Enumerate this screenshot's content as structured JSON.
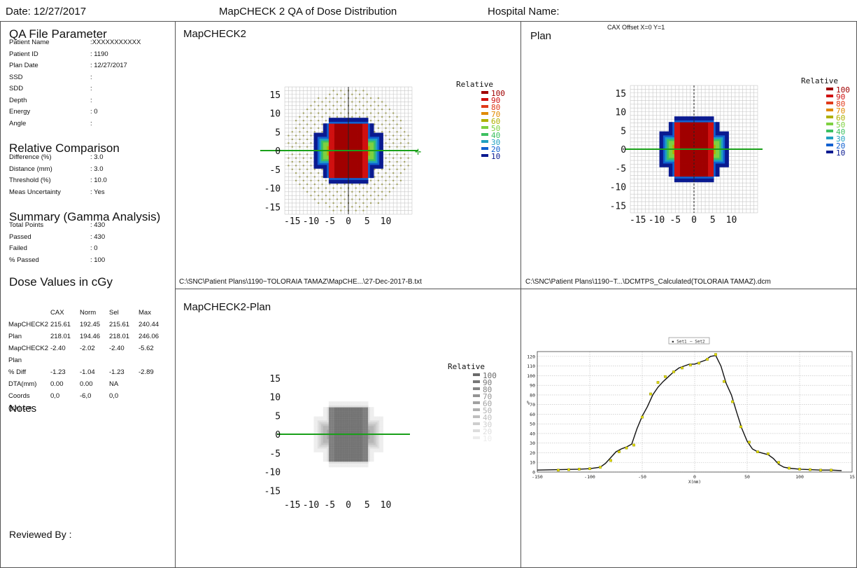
{
  "header": {
    "date": "Date: 12/27/2017",
    "title": "MapCHECK 2 QA of Dose Distribution",
    "hospital": "Hospital Name:"
  },
  "qa_file": {
    "title": "QA File Parameter",
    "rows": [
      {
        "label": "Patient Name",
        "value": ":XXXXXXXXXXX"
      },
      {
        "label": "Patient ID",
        "value": ": 1190"
      },
      {
        "label": "Plan Date",
        "value": ": 12/27/2017"
      },
      {
        "label": "SSD",
        "value": ":"
      },
      {
        "label": "SDD",
        "value": ":"
      },
      {
        "label": "Depth",
        "value": ":"
      },
      {
        "label": "Energy",
        "value": ": 0"
      },
      {
        "label": "Angle",
        "value": ":"
      }
    ]
  },
  "relative": {
    "title": "Relative Comparison",
    "rows": [
      {
        "label": "Difference (%)",
        "value": ": 3.0"
      },
      {
        "label": "Distance (mm)",
        "value": ": 3.0"
      },
      {
        "label": "Threshold (%)",
        "value": ": 10.0"
      },
      {
        "label": "Meas Uncertainty",
        "value": ": Yes"
      }
    ]
  },
  "summary": {
    "title": "Summary (Gamma Analysis)",
    "rows": [
      {
        "label": "Total Points",
        "value": ": 430"
      },
      {
        "label": "Passed",
        "value": ": 430"
      },
      {
        "label": "Failed",
        "value": ": 0"
      },
      {
        "label": "% Passed",
        "value": ": 100"
      }
    ]
  },
  "dose_values": {
    "title": "Dose Values in cGy",
    "headers": [
      "",
      "CAX",
      "Norm",
      "Sel",
      "Max"
    ],
    "rows": [
      [
        "MapCHECK2",
        "215.61",
        "192.45",
        "215.61",
        "240.44"
      ],
      [
        "Plan",
        "218.01",
        "194.46",
        "218.01",
        "246.06"
      ],
      [
        "MapCHECK2",
        "-2.40",
        "-2.02",
        "-2.40",
        "-5.62"
      ],
      [
        " Plan",
        "",
        "",
        "",
        ""
      ],
      [
        "% Diff",
        "-1.23",
        "-1.04",
        "-1.23",
        "-2.89"
      ],
      [
        "DTA(mm)",
        "0.00",
        "0.00",
        "NA",
        ""
      ],
      [
        "Coords",
        "0,0",
        "-6,0",
        "0,0",
        ""
      ],
      [
        "(y,x) cm",
        "",
        "",
        "",
        ""
      ]
    ]
  },
  "notes_label": "Notes",
  "reviewed_label": "Reviewed By :",
  "panels": {
    "mapcheck": {
      "title": "MapCHECK2",
      "footer": "C:\\SNC\\Patient Plans\\1190~TOLORAIA TAMAZ\\MapCHE...\\27-Dec-2017-B.txt"
    },
    "plan": {
      "title": "Plan",
      "offset": "CAX Offset X=0 Y=1",
      "footer": "C:\\SNC\\Patient Plans\\1190~T...\\DCMTPS_Calculated(TOLORAIA TAMAZ).dcm"
    },
    "diff": {
      "title": "MapCHECK2-Plan"
    }
  },
  "dose_map": {
    "y_ticks": [
      "15",
      "10",
      "5",
      "0",
      "-5",
      "-10",
      "-15"
    ],
    "x_ticks": [
      "-15",
      "-10",
      "-5",
      "0",
      "5",
      "10"
    ],
    "legend_title": "Relative",
    "legend_levels": [
      "100",
      "90",
      "80",
      "70",
      "60",
      "50",
      "40",
      "30",
      "20",
      "10"
    ],
    "legend_colors": [
      "#a00000",
      "#d01010",
      "#e03a1a",
      "#e08a00",
      "#b0b000",
      "#7ed040",
      "#3cc060",
      "#20a0c0",
      "#1060d0",
      "#0a1a90"
    ],
    "gray_colors": [
      "#6a6a6a",
      "#777777",
      "#858585",
      "#939393",
      "#a1a1a1",
      "#b0b0b0",
      "#bfbfbf",
      "#cecece",
      "#dddddd",
      "#ececec"
    ]
  },
  "chart_data": {
    "type": "line",
    "legend": [
      "Set1",
      "Set2"
    ],
    "xlabel": "X(mm)",
    "ylabel": "%",
    "xlim": [
      -150,
      150
    ],
    "ylim": [
      0,
      125
    ],
    "x_ticks": [
      "-150",
      "-100",
      "-50",
      "0",
      "50",
      "100",
      "15"
    ],
    "y_ticks": [
      "120",
      "110",
      "100",
      "90",
      "80",
      "70",
      "60",
      "50",
      "40",
      "30",
      "20",
      "10",
      "0"
    ],
    "series": [
      {
        "name": "Set1",
        "x": [
          -150,
          -130,
          -110,
          -100,
          -90,
          -85,
          -80,
          -75,
          -70,
          -65,
          -60,
          -55,
          -50,
          -45,
          -40,
          -35,
          -30,
          -25,
          -20,
          -15,
          -10,
          -5,
          0,
          5,
          10,
          15,
          20,
          25,
          30,
          35,
          40,
          45,
          50,
          55,
          60,
          65,
          70,
          75,
          80,
          85,
          90,
          100,
          110,
          120,
          130,
          140
        ],
        "y": [
          2,
          2.5,
          3,
          3.5,
          5,
          9,
          15,
          21,
          24,
          26,
          29,
          45,
          58,
          68,
          80,
          88,
          94,
          99,
          104,
          108,
          110,
          112,
          112,
          114,
          116,
          120,
          121,
          110,
          92,
          80,
          62,
          45,
          32,
          24,
          21,
          19.5,
          18,
          14,
          8,
          5,
          4,
          3,
          2.5,
          2,
          2,
          1.5
        ]
      },
      {
        "name": "Set2",
        "x": [
          -130,
          -120,
          -110,
          -100,
          -90,
          -80,
          -72,
          -65,
          -58,
          -50,
          -42,
          -35,
          -28,
          -20,
          -12,
          -4,
          4,
          12,
          20,
          28,
          36,
          44,
          52,
          60,
          70,
          80,
          90,
          100,
          110,
          120,
          130
        ],
        "y": [
          2,
          2.5,
          3,
          3.5,
          5,
          12,
          21,
          25,
          28,
          57,
          81,
          93,
          99,
          104,
          108,
          111,
          113,
          117,
          122,
          94,
          73,
          47,
          31,
          21,
          19,
          10,
          4,
          3,
          2.5,
          2,
          2
        ]
      }
    ]
  }
}
